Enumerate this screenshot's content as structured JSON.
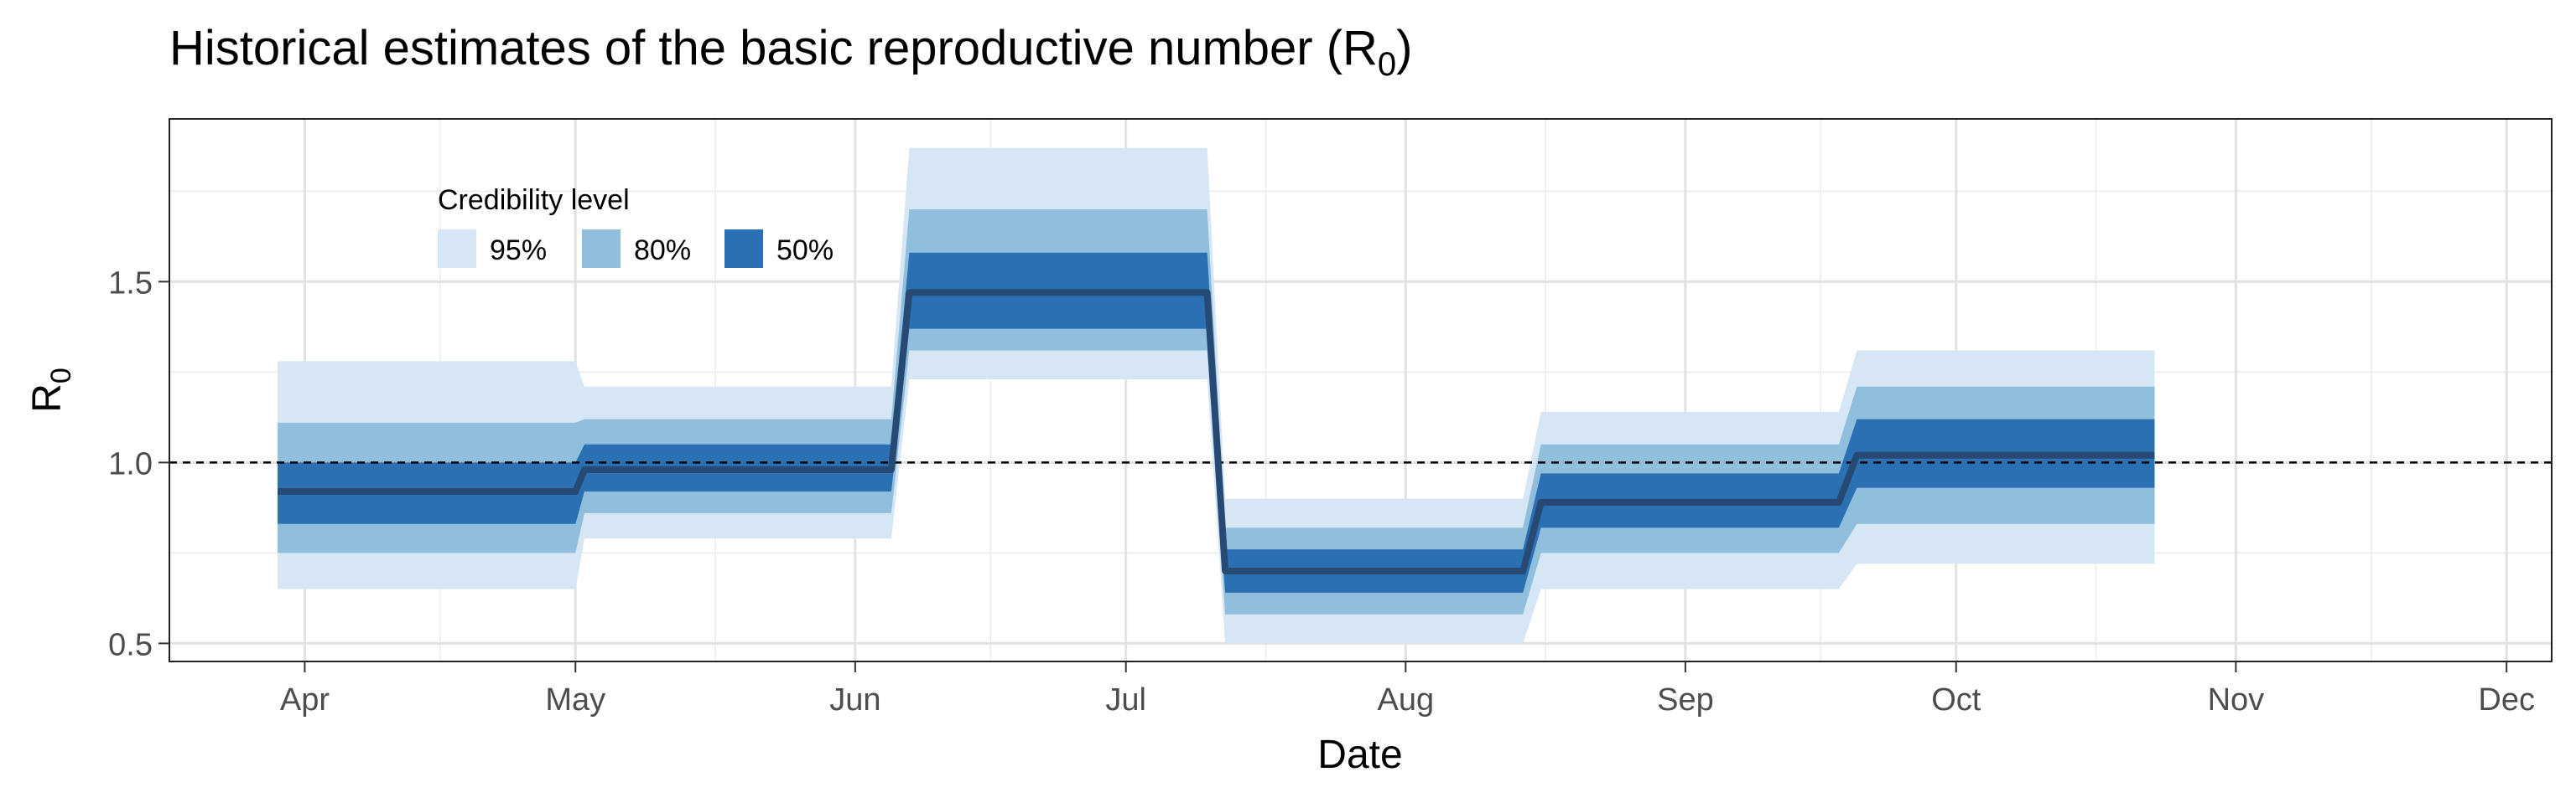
{
  "chart_data": {
    "type": "area",
    "title": {
      "main": "Historical estimates of the basic reproductive number (R",
      "sub": "0",
      "close": ")"
    },
    "xlabel": "Date",
    "ylabel": {
      "main": "R",
      "sub": "0"
    },
    "x_ticks": [
      "Apr",
      "May",
      "Jun",
      "Jul",
      "Aug",
      "Sep",
      "Oct",
      "Nov",
      "Dec"
    ],
    "x_tick_dates": [
      "2020-04-01",
      "2020-05-01",
      "2020-06-01",
      "2020-07-01",
      "2020-08-01",
      "2020-09-01",
      "2020-10-01",
      "2020-11-01",
      "2020-12-01"
    ],
    "y_ticks": [
      "0.5",
      "1.0",
      "1.5"
    ],
    "y_tick_values": [
      0.5,
      1.0,
      1.5
    ],
    "xlim": [
      "2020-03-17",
      "2020-12-06"
    ],
    "ylim": [
      0.45,
      1.95
    ],
    "grid": true,
    "reference_line": {
      "y": 1.0,
      "style": "dashed"
    },
    "legend": {
      "title": "Credibility level",
      "position": "top-left",
      "entries": [
        {
          "label": "95%",
          "color": "#d6e6f4"
        },
        {
          "label": "80%",
          "color": "#90bedd"
        },
        {
          "label": "50%",
          "color": "#2b70b3"
        }
      ]
    },
    "median_color": "#264a73",
    "segments": [
      {
        "start": "2020-03-29",
        "end": "2020-05-01",
        "median": 0.92,
        "ci50": [
          0.83,
          1.0
        ],
        "ci80": [
          0.75,
          1.11
        ],
        "ci95": [
          0.65,
          1.28
        ]
      },
      {
        "start": "2020-05-02",
        "end": "2020-06-05",
        "median": 0.98,
        "ci50": [
          0.92,
          1.05
        ],
        "ci80": [
          0.86,
          1.12
        ],
        "ci95": [
          0.79,
          1.21
        ]
      },
      {
        "start": "2020-06-07",
        "end": "2020-07-10",
        "median": 1.47,
        "ci50": [
          1.37,
          1.58
        ],
        "ci80": [
          1.31,
          1.7
        ],
        "ci95": [
          1.23,
          1.87
        ]
      },
      {
        "start": "2020-07-12",
        "end": "2020-08-14",
        "median": 0.7,
        "ci50": [
          0.64,
          0.76
        ],
        "ci80": [
          0.58,
          0.82
        ],
        "ci95": [
          0.5,
          0.9
        ]
      },
      {
        "start": "2020-08-16",
        "end": "2020-09-18",
        "median": 0.89,
        "ci50": [
          0.82,
          0.97
        ],
        "ci80": [
          0.75,
          1.05
        ],
        "ci95": [
          0.65,
          1.14
        ]
      },
      {
        "start": "2020-09-20",
        "end": "2020-10-23",
        "median": 1.02,
        "ci50": [
          0.93,
          1.12
        ],
        "ci80": [
          0.83,
          1.21
        ],
        "ci95": [
          0.72,
          1.31
        ]
      }
    ]
  }
}
